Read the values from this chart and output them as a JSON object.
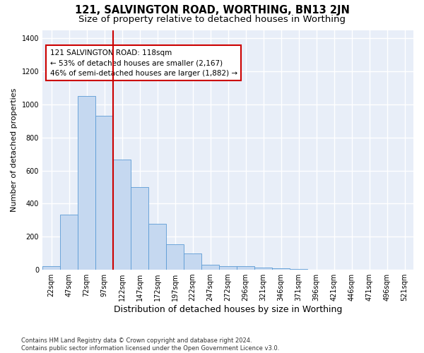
{
  "title": "121, SALVINGTON ROAD, WORTHING, BN13 2JN",
  "subtitle": "Size of property relative to detached houses in Worthing",
  "xlabel": "Distribution of detached houses by size in Worthing",
  "ylabel": "Number of detached properties",
  "footnote": "Contains HM Land Registry data © Crown copyright and database right 2024.\nContains public sector information licensed under the Open Government Licence v3.0.",
  "bar_labels": [
    "22sqm",
    "47sqm",
    "72sqm",
    "97sqm",
    "122sqm",
    "147sqm",
    "172sqm",
    "197sqm",
    "222sqm",
    "247sqm",
    "272sqm",
    "296sqm",
    "321sqm",
    "346sqm",
    "371sqm",
    "396sqm",
    "421sqm",
    "446sqm",
    "471sqm",
    "496sqm",
    "521sqm"
  ],
  "bar_values": [
    20,
    335,
    1050,
    930,
    665,
    500,
    280,
    155,
    100,
    30,
    20,
    20,
    15,
    10,
    5,
    0,
    0,
    0,
    0,
    0,
    0
  ],
  "bar_color": "#c5d8f0",
  "bar_edge_color": "#5b9bd5",
  "vline_x": 3.5,
  "vline_color": "#cc0000",
  "annotation_text": "121 SALVINGTON ROAD: 118sqm\n← 53% of detached houses are smaller (2,167)\n46% of semi-detached houses are larger (1,882) →",
  "annotation_box_color": "white",
  "annotation_box_edge": "#cc0000",
  "ylim": [
    0,
    1450
  ],
  "yticks": [
    0,
    200,
    400,
    600,
    800,
    1000,
    1200,
    1400
  ],
  "bg_color": "#e8eef8",
  "grid_color": "white",
  "title_fontsize": 10.5,
  "subtitle_fontsize": 9.5,
  "xlabel_fontsize": 9,
  "ylabel_fontsize": 8,
  "annotation_fontsize": 7.5,
  "tick_fontsize": 7
}
